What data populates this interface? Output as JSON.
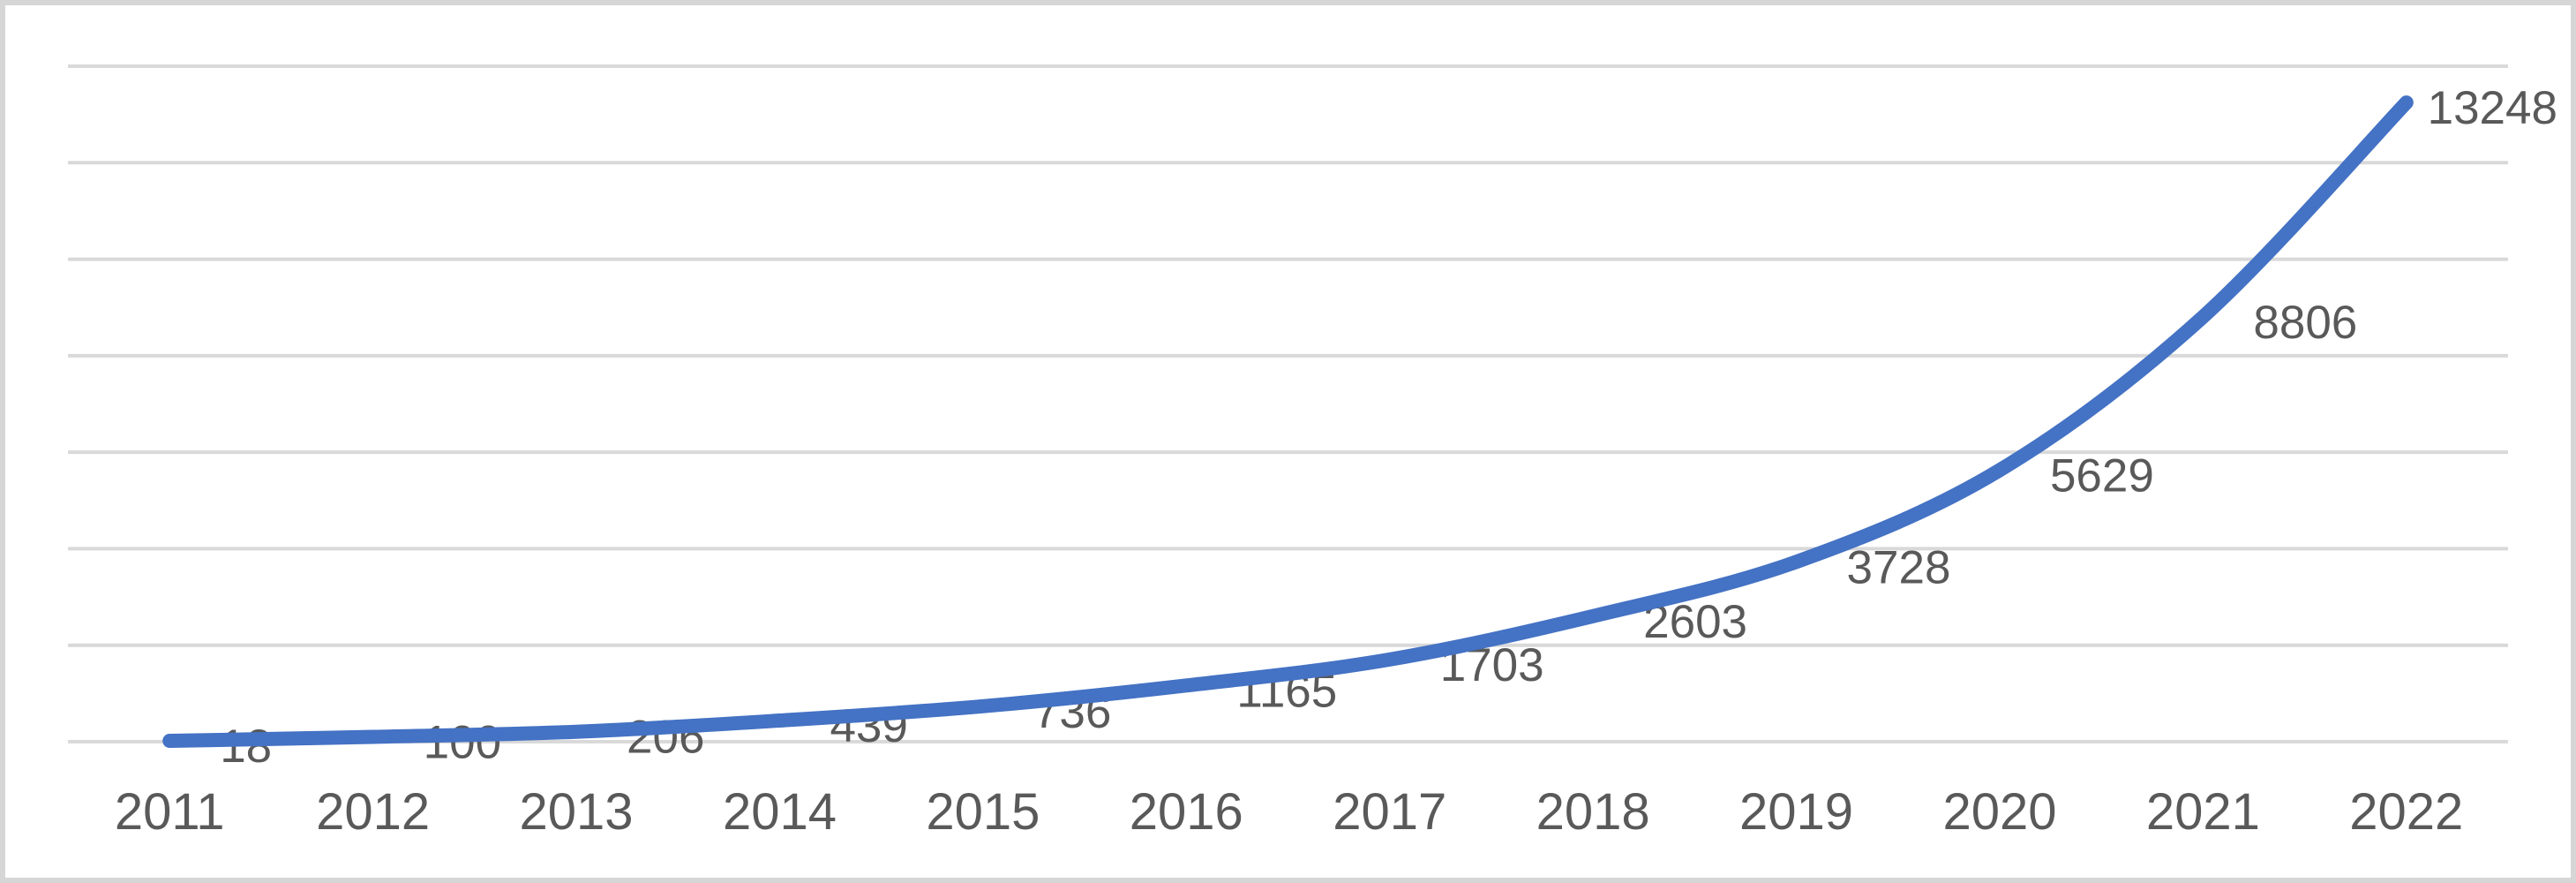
{
  "chart_data": {
    "type": "line",
    "title": "",
    "xlabel": "",
    "ylabel": "",
    "categories": [
      "2011",
      "2012",
      "2013",
      "2014",
      "2015",
      "2016",
      "2017",
      "2018",
      "2019",
      "2020",
      "2021",
      "2022"
    ],
    "series": [
      {
        "name": "",
        "values": [
          18,
          100,
          206,
          439,
          736,
          1165,
          1703,
          2603,
          3728,
          5629,
          8806,
          13248
        ]
      }
    ],
    "data_labels": [
      "18",
      "100",
      "206",
      "439",
      "736",
      "1165",
      "1703",
      "2603",
      "3728",
      "5629",
      "8806",
      "13248"
    ],
    "ylim": [
      0,
      14000
    ],
    "y_gridline_step": 2000,
    "grid": true,
    "y_axis_tick_labels_visible": false,
    "legend": "none",
    "smooth_line": true,
    "line_color": "#4472C4",
    "gridline_color": "#D9D9D9",
    "data_label_color": "#595959",
    "axis_label_color": "#595959",
    "chart_border_color": "#D6D6D6",
    "background_color": "#FFFFFF"
  }
}
